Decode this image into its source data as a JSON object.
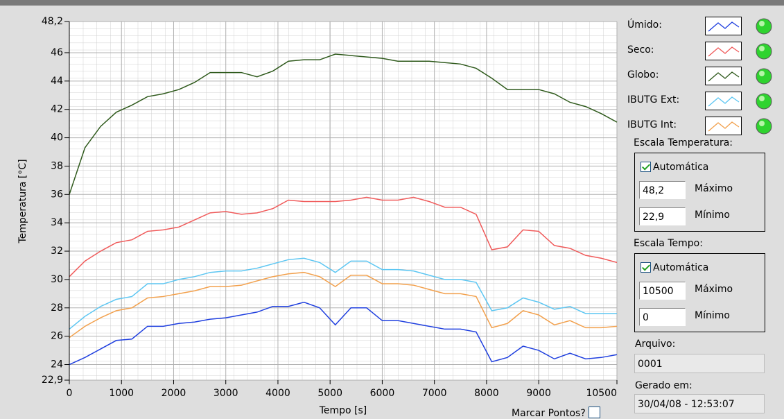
{
  "chart_data": {
    "type": "line",
    "xlabel": "Tempo [s]",
    "ylabel": "Temperatura [°C]",
    "x": [
      0,
      300,
      600,
      900,
      1200,
      1500,
      1800,
      2100,
      2400,
      2700,
      3000,
      3300,
      3600,
      3900,
      4200,
      4500,
      4800,
      5100,
      5400,
      5700,
      6000,
      6300,
      6600,
      6900,
      7200,
      7500,
      7800,
      8100,
      8400,
      8700,
      9000,
      9300,
      9600,
      9900,
      10200,
      10500
    ],
    "series": [
      {
        "name": "Úmido:",
        "color": "#1f3fdf",
        "values": [
          24.0,
          24.5,
          25.1,
          25.7,
          25.8,
          26.7,
          26.7,
          26.9,
          27.0,
          27.2,
          27.3,
          27.5,
          27.7,
          28.1,
          28.1,
          28.4,
          28.0,
          26.8,
          28.0,
          28.0,
          27.1,
          27.1,
          26.9,
          26.7,
          26.5,
          26.5,
          26.3,
          24.2,
          24.5,
          25.3,
          25.0,
          24.4,
          24.8,
          24.4,
          24.5,
          24.7
        ]
      },
      {
        "name": "Seco:",
        "color": "#f05a5a",
        "values": [
          30.2,
          31.3,
          32.0,
          32.6,
          32.8,
          33.4,
          33.5,
          33.7,
          34.2,
          34.7,
          34.8,
          34.6,
          34.7,
          35.0,
          35.6,
          35.5,
          35.5,
          35.5,
          35.6,
          35.8,
          35.6,
          35.6,
          35.8,
          35.5,
          35.1,
          35.1,
          34.6,
          32.1,
          32.3,
          33.5,
          33.4,
          32.4,
          32.2,
          31.7,
          31.5,
          31.2
        ]
      },
      {
        "name": "Globo:",
        "color": "#2f5a1c",
        "values": [
          36.0,
          39.3,
          40.8,
          41.8,
          42.3,
          42.9,
          43.1,
          43.4,
          43.9,
          44.6,
          44.6,
          44.6,
          44.3,
          44.7,
          45.4,
          45.5,
          45.5,
          45.9,
          45.8,
          45.7,
          45.6,
          45.4,
          45.4,
          45.4,
          45.3,
          45.2,
          44.9,
          44.2,
          43.4,
          43.4,
          43.4,
          43.1,
          42.5,
          42.2,
          41.7,
          41.1
        ]
      },
      {
        "name": "IBUTG Ext:",
        "color": "#5cc6f2",
        "values": [
          26.5,
          27.4,
          28.1,
          28.6,
          28.8,
          29.7,
          29.7,
          30.0,
          30.2,
          30.5,
          30.6,
          30.6,
          30.8,
          31.1,
          31.4,
          31.5,
          31.2,
          30.5,
          31.3,
          31.3,
          30.7,
          30.7,
          30.6,
          30.3,
          30.0,
          30.0,
          29.8,
          27.8,
          28.0,
          28.7,
          28.4,
          27.9,
          28.1,
          27.6,
          27.6,
          27.6
        ]
      },
      {
        "name": "IBUTG Int:",
        "color": "#f2a04c",
        "values": [
          25.9,
          26.7,
          27.3,
          27.8,
          28.0,
          28.7,
          28.8,
          29.0,
          29.2,
          29.5,
          29.5,
          29.6,
          29.9,
          30.2,
          30.4,
          30.5,
          30.2,
          29.5,
          30.3,
          30.3,
          29.7,
          29.7,
          29.6,
          29.3,
          29.0,
          29.0,
          28.8,
          26.6,
          26.9,
          27.8,
          27.5,
          26.8,
          27.1,
          26.6,
          26.6,
          26.7
        ]
      }
    ],
    "xlim": [
      0,
      10500
    ],
    "xticks": [
      0,
      1000,
      2000,
      3000,
      4000,
      5000,
      6000,
      7000,
      8000,
      9000,
      10500
    ],
    "ylim": [
      22.9,
      48.2
    ],
    "yticks": [
      {
        "value": 22.9,
        "label": "22,9"
      },
      24,
      26,
      28,
      30,
      32,
      34,
      36,
      38,
      40,
      42,
      44,
      46,
      {
        "value": 48.2,
        "label": "48,2"
      }
    ],
    "grid": true
  },
  "panel": {
    "temp_scale": {
      "title": "Escala Temperatura:",
      "auto": "Automática",
      "max": "48,2",
      "max_label": "Máximo",
      "min": "22,9",
      "min_label": "Mínimo"
    },
    "time_scale": {
      "title": "Escala Tempo:",
      "auto": "Automática",
      "max": "10500",
      "max_label": "Máximo",
      "min": "0",
      "min_label": "Mínimo"
    },
    "file_label": "Arquivo:",
    "file": "0001",
    "generated_label": "Gerado em:",
    "generated": "30/04/08 - 12:53:07",
    "mark_points": "Marcar Pontos?"
  }
}
